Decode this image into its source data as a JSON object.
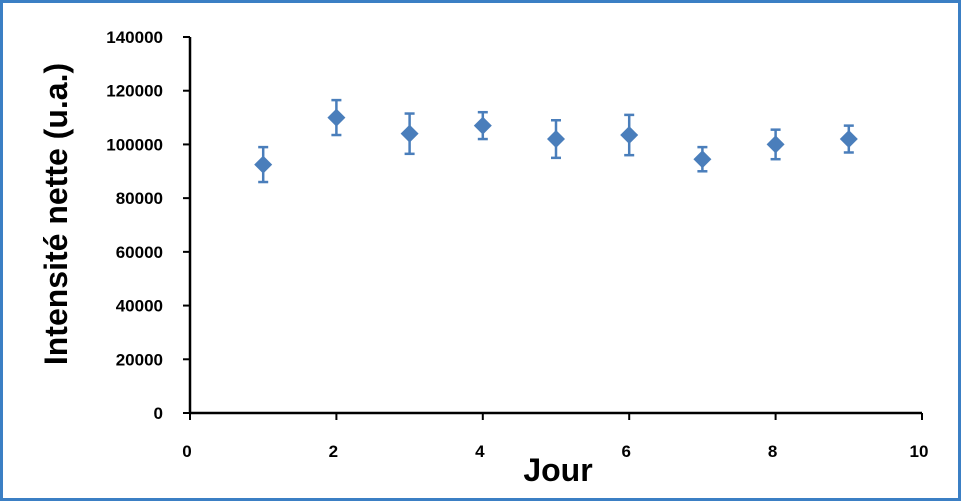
{
  "chart_data": {
    "type": "scatter",
    "title": "",
    "xlabel": "Jour",
    "ylabel": "Intensité nette (u.a.)",
    "xlim": [
      0,
      10
    ],
    "ylim": [
      0,
      140000
    ],
    "xticks": [
      0,
      2,
      4,
      6,
      8,
      10
    ],
    "yticks": [
      0,
      20000,
      40000,
      60000,
      80000,
      100000,
      120000,
      140000
    ],
    "grid": false,
    "legend": "none",
    "colors": {
      "marker": "#4a7ebb",
      "axis": "#000000",
      "frame": "#3b7fc4"
    },
    "series": [
      {
        "marker": "diamond",
        "points": [
          {
            "x": 1,
            "y": 92500,
            "err": 6500
          },
          {
            "x": 2,
            "y": 110000,
            "err": 6500
          },
          {
            "x": 3,
            "y": 104000,
            "err": 7500
          },
          {
            "x": 4,
            "y": 107000,
            "err": 5000
          },
          {
            "x": 5,
            "y": 102000,
            "err": 7000
          },
          {
            "x": 6,
            "y": 103500,
            "err": 7500
          },
          {
            "x": 7,
            "y": 94500,
            "err": 4500
          },
          {
            "x": 8,
            "y": 100000,
            "err": 5500
          },
          {
            "x": 9,
            "y": 102000,
            "err": 5000
          }
        ]
      }
    ]
  }
}
